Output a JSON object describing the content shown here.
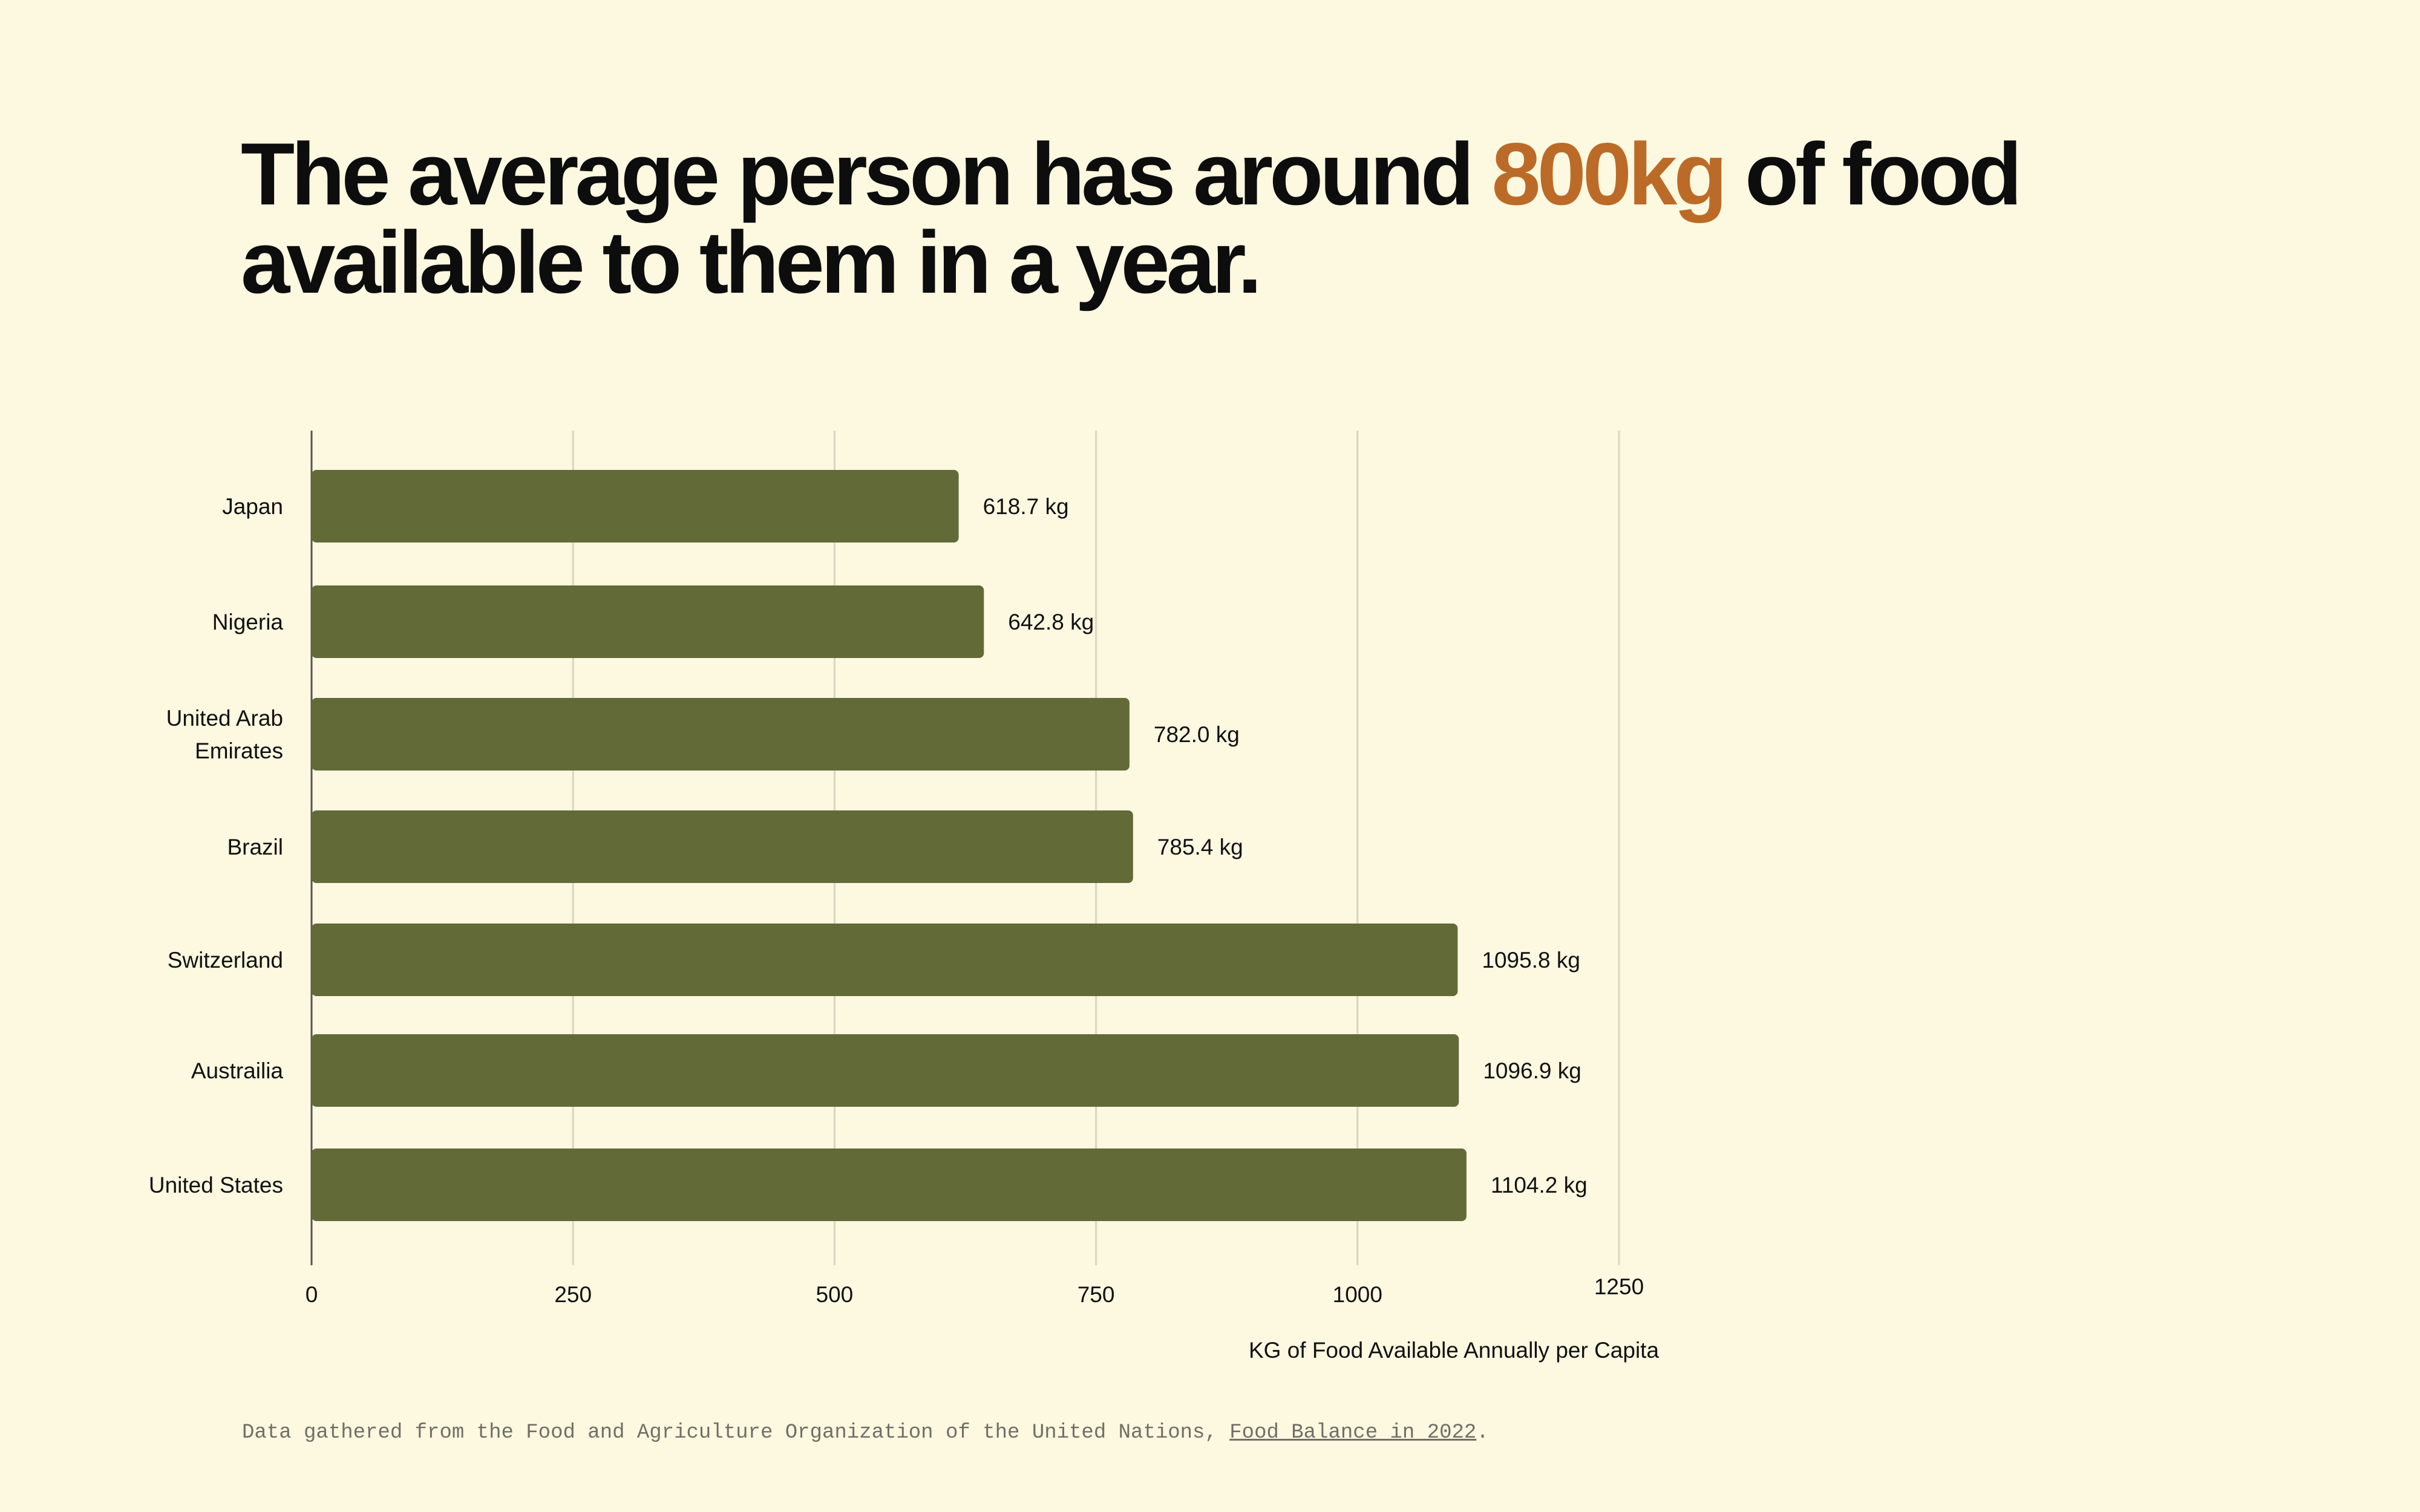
{
  "title": {
    "before": "The average person has around ",
    "highlight": "800kg",
    "line1_after": " of food",
    "line2": "available to them in a year."
  },
  "colors": {
    "background": "#fdf8e0",
    "bar": "#626b38",
    "highlight": "#bb6b27",
    "grid": "#d6d6c2"
  },
  "chart_data": {
    "type": "bar",
    "orientation": "horizontal",
    "categories": [
      "Japan",
      "Nigeria",
      "United Arab Emirates",
      "Brazil",
      "Switzerland",
      "Austrailia",
      "United States"
    ],
    "category_lines": [
      [
        "Japan"
      ],
      [
        "Nigeria"
      ],
      [
        "United Arab",
        "Emirates"
      ],
      [
        "Brazil"
      ],
      [
        "Switzerland"
      ],
      [
        "Austrailia"
      ],
      [
        "United States"
      ]
    ],
    "values": [
      618.7,
      642.8,
      782.0,
      785.4,
      1095.8,
      1096.9,
      1104.2
    ],
    "value_labels": [
      "618.7 kg",
      "642.8 kg",
      "782.0 kg",
      "785.4 kg",
      "1095.8 kg",
      "1096.9 kg",
      "1104.2 kg"
    ],
    "xlim": [
      0,
      1250
    ],
    "xticks": [
      0,
      250,
      500,
      750,
      1000,
      1250
    ],
    "xtick_labels": [
      "0",
      "250",
      "500",
      "750",
      "1000",
      "1250"
    ],
    "xlabel": "KG of Food Available Annually per Capita",
    "ylabel": "",
    "grid": "vertical"
  },
  "footnote": {
    "text": "Data gathered from the Food and Agriculture Organization of the United Nations, ",
    "link": "Food Balance in 2022",
    "end": "."
  }
}
